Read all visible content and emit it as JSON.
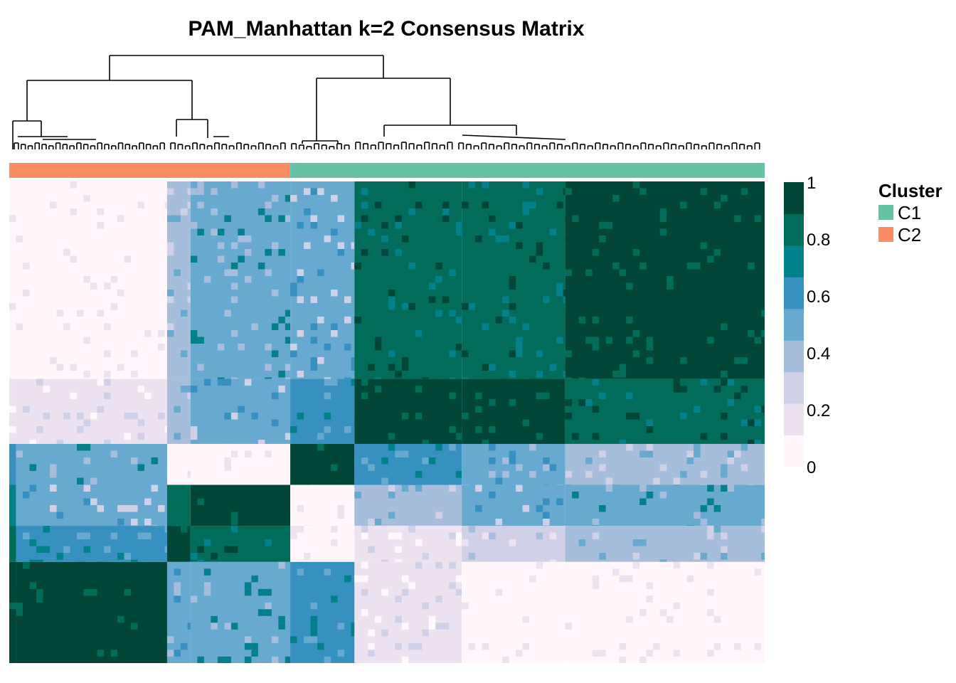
{
  "chart_data": {
    "type": "heatmap",
    "title": "PAM_Manhattan k=2 Consensus Matrix",
    "xlabel": "",
    "ylabel": "",
    "value_range": [
      0,
      1
    ],
    "colorbar": {
      "ticks": [
        "1",
        "0.8",
        "0.6",
        "0.4",
        "0.2",
        "0"
      ],
      "colors": [
        "#fff7fb",
        "#ece2f0",
        "#d0d1e6",
        "#a6bddb",
        "#67a9cf",
        "#3690c0",
        "#02818a",
        "#016c59",
        "#014636"
      ]
    },
    "legend": {
      "title": "Cluster",
      "placement": "right",
      "entries": [
        {
          "label": "C1",
          "color": "#66c2a5"
        },
        {
          "label": "C2",
          "color": "#fc8d62"
        }
      ]
    },
    "column_cluster_annotation": [
      {
        "cluster": "C2",
        "from_fraction": 0.0,
        "to_fraction": 0.372
      },
      {
        "cluster": "C1",
        "from_fraction": 0.372,
        "to_fraction": 1.0
      }
    ],
    "blocks": {
      "col_bounds": [
        0.0,
        0.009,
        0.209,
        0.24,
        0.372,
        0.457,
        0.599,
        0.736,
        1.0
      ],
      "row_bounds": [
        0.0,
        0.41,
        0.545,
        0.63,
        0.715,
        0.79,
        1.0
      ],
      "values": [
        [
          0.08,
          0.0,
          0.4,
          0.55,
          0.45,
          0.85,
          0.8,
          0.98
        ],
        [
          0.15,
          0.2,
          0.35,
          0.45,
          0.62,
          0.98,
          0.9,
          0.8
        ],
        [
          0.65,
          0.55,
          0.0,
          0.0,
          0.98,
          0.6,
          0.5,
          0.4
        ],
        [
          0.7,
          0.45,
          0.85,
          0.98,
          0.0,
          0.35,
          0.45,
          0.55
        ],
        [
          0.82,
          0.6,
          0.98,
          0.85,
          0.1,
          0.2,
          0.3,
          0.35
        ],
        [
          0.92,
          0.98,
          0.5,
          0.55,
          0.6,
          0.2,
          0.08,
          0.05
        ]
      ]
    }
  }
}
